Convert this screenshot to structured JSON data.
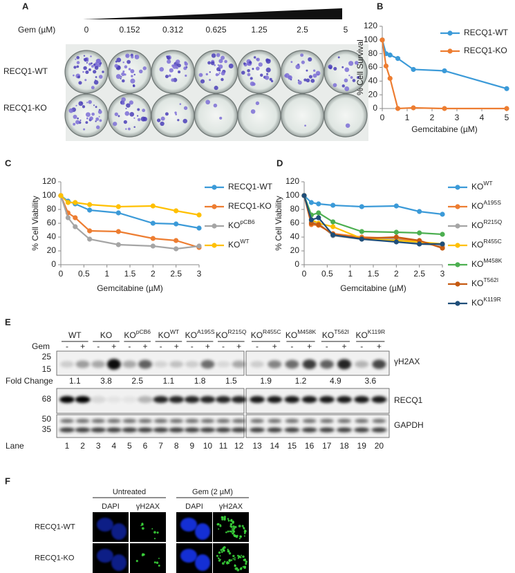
{
  "figure": {
    "panel_a": {
      "label": "A",
      "dose_label": "Gem (µM)",
      "doses": [
        0,
        0.152,
        0.312,
        0.625,
        1.25,
        2.5,
        5
      ],
      "rows": [
        "RECQ1-WT",
        "RECQ1-KO"
      ]
    },
    "panel_e": {
      "label": "E",
      "groups": [
        {
          "name": "WT"
        },
        {
          "name": "KO"
        },
        {
          "name": "KO",
          "name_sup": "pCB6"
        },
        {
          "name": "KO",
          "name_sup": "WT"
        },
        {
          "name": "KO",
          "name_sup": "A195S"
        },
        {
          "name": "KO",
          "name_sup": "R215Q"
        },
        {
          "name": "KO",
          "name_sup": "R455C"
        },
        {
          "name": "KO",
          "name_sup": "M458K"
        },
        {
          "name": "KO",
          "name_sup": "T562I"
        },
        {
          "name": "KO",
          "name_sup": "K119R"
        }
      ],
      "gem_label": "Gem",
      "gem": [
        "-",
        "+",
        "-",
        "+",
        "-",
        "+",
        "-",
        "+",
        "-",
        "+",
        "-",
        "+",
        "-",
        "+",
        "-",
        "+",
        "-",
        "+",
        "-",
        "+"
      ],
      "markers": [
        25,
        15,
        68,
        50,
        35
      ],
      "proteins": [
        "γH2AX",
        "RECQ1",
        "GAPDH"
      ],
      "fold_change_label": "Fold Change",
      "fold_change": [
        1.1,
        3.8,
        2.5,
        1.1,
        1.8,
        1.5,
        1.9,
        1.2,
        4.9,
        3.6
      ],
      "lane_label": "Lane",
      "lanes": [
        1,
        2,
        3,
        4,
        5,
        6,
        7,
        8,
        9,
        10,
        11,
        12,
        13,
        14,
        15,
        16,
        17,
        18,
        19,
        20
      ]
    },
    "panel_f": {
      "label": "F",
      "conditions": [
        "Untreated",
        "Gem (2 µM)"
      ],
      "stains": [
        "DAPI",
        "γH2AX",
        "DAPI",
        "γH2AX"
      ],
      "rows": [
        "RECQ1-WT",
        "RECQ1-KO"
      ]
    }
  },
  "chart_data": [
    {
      "type": "line",
      "label": "B",
      "x_label": "Gemcitabine (µM)",
      "y_label": "% Cell Survival",
      "x": [
        0,
        0.152,
        0.312,
        0.625,
        1.25,
        2.5,
        5
      ],
      "series": [
        {
          "name": "RECQ1-WT",
          "color": "#3b9ad8",
          "values": [
            100,
            80,
            78,
            73,
            57,
            55,
            29
          ]
        },
        {
          "name": "RECQ1-KO",
          "color": "#ed7d31",
          "values": [
            100,
            62,
            44,
            0,
            1,
            0,
            0
          ]
        }
      ],
      "xlim": [
        0,
        5
      ],
      "xticks": [
        0,
        1,
        2,
        3,
        4,
        5
      ],
      "ylim": [
        0,
        120
      ],
      "yticks": [
        0,
        20,
        40,
        60,
        80,
        100,
        120
      ],
      "grid": false,
      "legend": "upper right"
    },
    {
      "type": "line",
      "label": "C",
      "x_label": "Gemcitabine (µM)",
      "y_label": "% Cell Viability",
      "x": [
        0,
        0.156,
        0.312,
        0.625,
        1.25,
        2,
        2.5,
        3
      ],
      "series": [
        {
          "name": "RECQ1-WT",
          "color": "#3b9ad8",
          "values": [
            100,
            92,
            88,
            79,
            75,
            60,
            59,
            53
          ]
        },
        {
          "name": "RECQ1-KO",
          "color": "#ed7d31",
          "values": [
            100,
            75,
            68,
            49,
            48,
            38,
            35,
            25
          ]
        },
        {
          "name": "KO",
          "name_sup": "pCB6",
          "color": "#a5a5a5",
          "values": [
            100,
            68,
            55,
            37,
            29,
            27,
            23,
            27
          ]
        },
        {
          "name": "KO",
          "name_sup": "WT",
          "color": "#ffc000",
          "values": [
            100,
            90,
            90,
            87,
            84,
            85,
            78,
            72
          ]
        }
      ],
      "xlim": [
        0,
        3
      ],
      "xticks": [
        0,
        0.5,
        1,
        1.5,
        2,
        2.5,
        3
      ],
      "ylim": [
        0,
        120
      ],
      "yticks": [
        0,
        20,
        40,
        60,
        80,
        100,
        120
      ],
      "grid": false,
      "legend": "right"
    },
    {
      "type": "line",
      "label": "D",
      "x_label": "Gemcitabine (µM)",
      "y_label": "% Cell Viability",
      "x": [
        0,
        0.156,
        0.312,
        0.625,
        1.25,
        2,
        2.5,
        3
      ],
      "series": [
        {
          "name": "KO",
          "name_sup": "WT",
          "color": "#3b9ad8",
          "values": [
            100,
            90,
            88,
            86,
            84,
            85,
            77,
            73
          ]
        },
        {
          "name": "KO",
          "name_sup": "A195S",
          "color": "#ed7d31",
          "values": [
            100,
            58,
            57,
            45,
            40,
            38,
            33,
            26
          ]
        },
        {
          "name": "KO",
          "name_sup": "R215Q",
          "color": "#a5a5a5",
          "values": [
            100,
            62,
            60,
            42,
            37,
            37,
            30,
            28
          ]
        },
        {
          "name": "KO",
          "name_sup": "R455C",
          "color": "#ffc000",
          "values": [
            100,
            65,
            60,
            55,
            38,
            35,
            33,
            30
          ]
        },
        {
          "name": "KO",
          "name_sup": "M458K",
          "color": "#4caf50",
          "values": [
            100,
            72,
            75,
            62,
            48,
            47,
            46,
            44
          ]
        },
        {
          "name": "KO",
          "name_sup": "T562I",
          "color": "#c55a11",
          "values": [
            100,
            60,
            58,
            44,
            38,
            40,
            35,
            24
          ]
        },
        {
          "name": "KO",
          "name_sup": "K119R",
          "color": "#1f4e79",
          "values": [
            100,
            65,
            68,
            43,
            37,
            33,
            30,
            30
          ]
        }
      ],
      "xlim": [
        0,
        3
      ],
      "xticks": [
        0,
        0.5,
        1,
        1.5,
        2,
        2.5,
        3
      ],
      "ylim": [
        0,
        120
      ],
      "yticks": [
        0,
        20,
        40,
        60,
        80,
        100,
        120
      ],
      "grid": false,
      "legend": "right"
    }
  ]
}
